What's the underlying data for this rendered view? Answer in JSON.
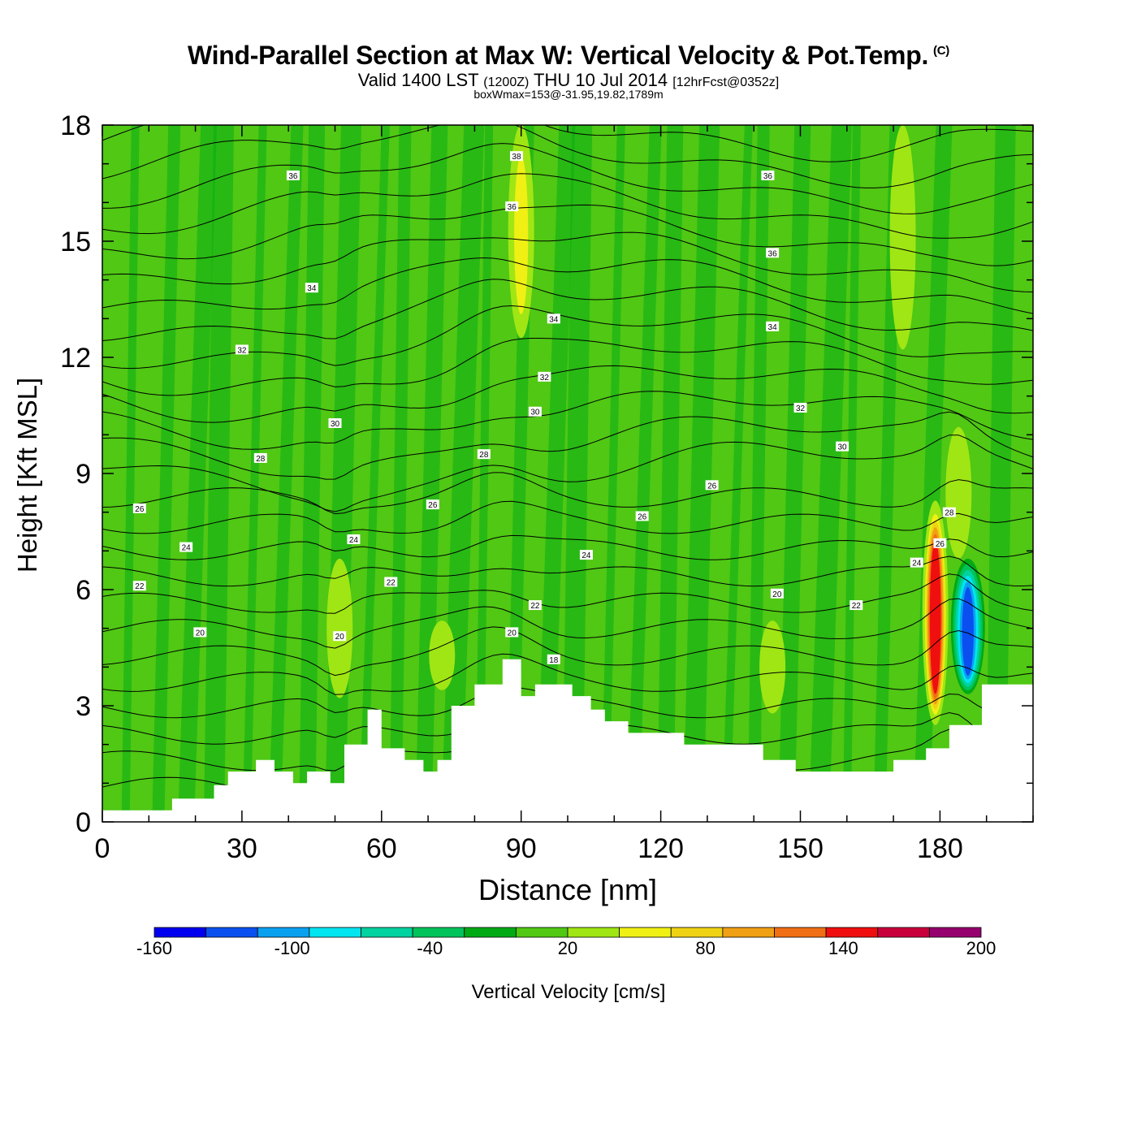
{
  "title": {
    "main": "Wind-Parallel Section at Max W: Vertical Velocity & Pot.Temp.",
    "copyright": "(C)",
    "valid_prefix": "Valid 1400 LST",
    "valid_utc": "(1200Z)",
    "valid_date": "THU 10 Jul 2014",
    "forecast": "[12hrFcst@0352z]",
    "boxwmax": "boxWmax=153@-31.95,19.82,1789m"
  },
  "colorbar": {
    "title": "Vertical Velocity [cm/s]",
    "tick_labels": [
      "-160",
      "-100",
      "-40",
      "20",
      "80",
      "140",
      "200"
    ],
    "tick_values": [
      -160,
      -100,
      -40,
      20,
      80,
      140,
      200
    ],
    "colors": [
      "#0000f0",
      "#0a50f0",
      "#0aa0f0",
      "#00e6f0",
      "#00d2a0",
      "#00c35a",
      "#00aa14",
      "#50c814",
      "#a0e614",
      "#f0f014",
      "#f0d214",
      "#f0a014",
      "#f06e14",
      "#f00f0f",
      "#c8003c",
      "#96006e"
    ],
    "min": -160,
    "max": 200
  },
  "chart_data": {
    "type": "heatmap",
    "xlabel": "Distance [nm]",
    "ylabel": "Height [Kft MSL]",
    "xlim": [
      0,
      200
    ],
    "ylim": [
      0,
      18
    ],
    "x_ticks": [
      "0",
      "30",
      "60",
      "90",
      "120",
      "150",
      "180"
    ],
    "x_tick_values": [
      0,
      30,
      60,
      90,
      120,
      150,
      180
    ],
    "y_ticks": [
      "0",
      "3",
      "6",
      "9",
      "12",
      "15",
      "18"
    ],
    "y_tick_values": [
      0,
      3,
      6,
      9,
      12,
      15,
      18
    ],
    "background_value_cm_s": 0,
    "terrain_profile": {
      "x": [
        0,
        15,
        24,
        27,
        33,
        37,
        41,
        44,
        49,
        52,
        57,
        60,
        65,
        69,
        72,
        75,
        80,
        82,
        86,
        90,
        93,
        97,
        101,
        105,
        108,
        113,
        125,
        142,
        149,
        158,
        170,
        177,
        182,
        189,
        200
      ],
      "y": [
        0.3,
        0.6,
        0.95,
        1.3,
        1.6,
        1.3,
        1.0,
        1.3,
        1.0,
        2.0,
        2.9,
        1.9,
        1.6,
        1.3,
        1.6,
        3.0,
        3.55,
        3.55,
        4.2,
        3.25,
        3.55,
        3.55,
        3.25,
        2.9,
        2.6,
        2.3,
        2.0,
        1.6,
        1.3,
        1.3,
        1.6,
        1.9,
        2.5,
        3.55,
        3.85
      ]
    },
    "w_features": [
      {
        "x": 90,
        "y_bottom": 12.5,
        "y_top": 18,
        "w": 60
      },
      {
        "x": 172,
        "y_bottom": 12.2,
        "y_top": 18,
        "w": 40
      },
      {
        "x": 51,
        "y_bottom": 3.2,
        "y_top": 6.8,
        "w": 40
      },
      {
        "x": 73,
        "y_bottom": 3.4,
        "y_top": 5.2,
        "w": 30
      },
      {
        "x": 144,
        "y_bottom": 2.8,
        "y_top": 5.2,
        "w": 30
      },
      {
        "x": 179,
        "y_bottom": 2.5,
        "y_top": 8.3,
        "w": 153
      },
      {
        "x": 186,
        "y_bottom": 3.3,
        "y_top": 6.8,
        "w": -120
      },
      {
        "x": 184,
        "y_bottom": 6.8,
        "y_top": 10.2,
        "w": 40
      }
    ],
    "theta_contour_labels": [
      {
        "x": 89,
        "y": 17.2,
        "text": "38"
      },
      {
        "x": 41,
        "y": 16.7,
        "text": "36"
      },
      {
        "x": 143,
        "y": 16.7,
        "text": "36"
      },
      {
        "x": 88,
        "y": 15.9,
        "text": "36"
      },
      {
        "x": 144,
        "y": 14.7,
        "text": "36"
      },
      {
        "x": 45,
        "y": 13.8,
        "text": "34"
      },
      {
        "x": 97,
        "y": 13.0,
        "text": "34"
      },
      {
        "x": 144,
        "y": 12.8,
        "text": "34"
      },
      {
        "x": 30,
        "y": 12.2,
        "text": "32"
      },
      {
        "x": 95,
        "y": 11.5,
        "text": "32"
      },
      {
        "x": 150,
        "y": 10.7,
        "text": "32"
      },
      {
        "x": 50,
        "y": 10.3,
        "text": "30"
      },
      {
        "x": 93,
        "y": 10.6,
        "text": "30"
      },
      {
        "x": 159,
        "y": 9.7,
        "text": "30"
      },
      {
        "x": 34,
        "y": 9.4,
        "text": "28"
      },
      {
        "x": 82,
        "y": 9.5,
        "text": "28"
      },
      {
        "x": 8,
        "y": 8.1,
        "text": "26"
      },
      {
        "x": 71,
        "y": 8.2,
        "text": "26"
      },
      {
        "x": 131,
        "y": 8.7,
        "text": "26"
      },
      {
        "x": 116,
        "y": 7.9,
        "text": "26"
      },
      {
        "x": 182,
        "y": 8.0,
        "text": "28"
      },
      {
        "x": 180,
        "y": 7.2,
        "text": "26"
      },
      {
        "x": 18,
        "y": 7.1,
        "text": "24"
      },
      {
        "x": 54,
        "y": 7.3,
        "text": "24"
      },
      {
        "x": 104,
        "y": 6.9,
        "text": "24"
      },
      {
        "x": 175,
        "y": 6.7,
        "text": "24"
      },
      {
        "x": 8,
        "y": 6.1,
        "text": "22"
      },
      {
        "x": 62,
        "y": 6.2,
        "text": "22"
      },
      {
        "x": 93,
        "y": 5.6,
        "text": "22"
      },
      {
        "x": 162,
        "y": 5.6,
        "text": "22"
      },
      {
        "x": 21,
        "y": 4.9,
        "text": "20"
      },
      {
        "x": 51,
        "y": 4.8,
        "text": "20"
      },
      {
        "x": 88,
        "y": 4.9,
        "text": "20"
      },
      {
        "x": 145,
        "y": 5.9,
        "text": "20"
      },
      {
        "x": 97,
        "y": 4.2,
        "text": "18"
      }
    ]
  }
}
